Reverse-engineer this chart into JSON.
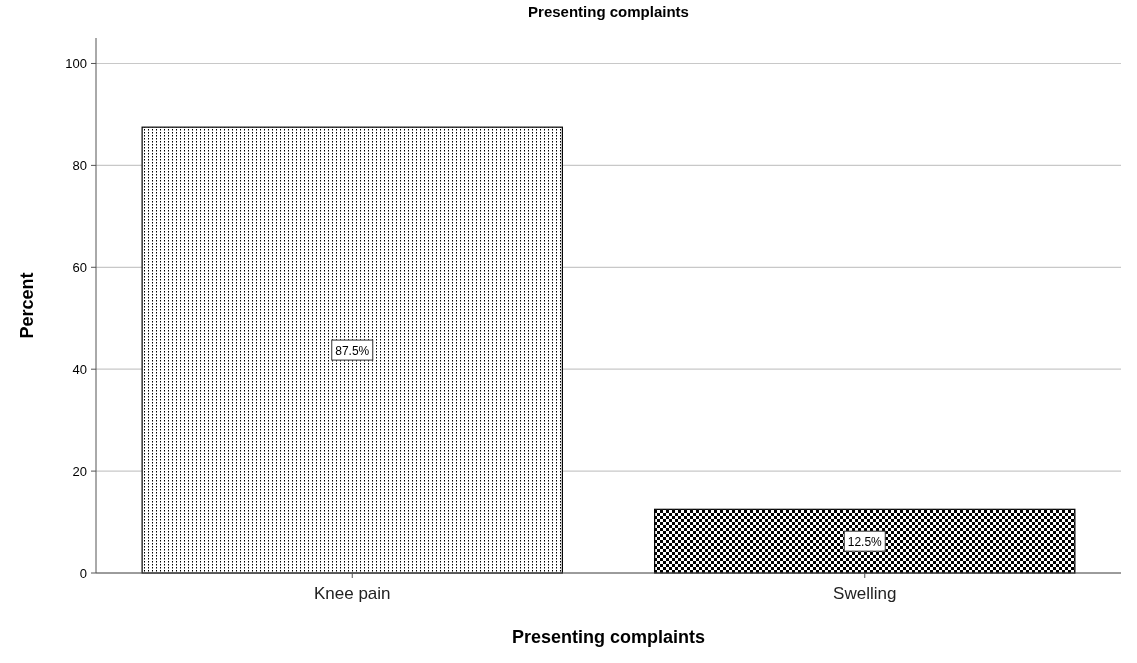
{
  "chart_data": {
    "type": "bar",
    "title": "Presenting complaints",
    "xlabel": "Presenting complaints",
    "ylabel": "Percent",
    "categories": [
      "Knee pain",
      "Swelling"
    ],
    "values": [
      87.5,
      12.5
    ],
    "colors": [
      "#000000",
      "#000000"
    ],
    "value_labels": [
      "87.5%",
      "12.5%"
    ],
    "ylim": [
      0,
      105
    ],
    "yticks": [
      0,
      20,
      40,
      60,
      80,
      100
    ],
    "grid": "y"
  }
}
